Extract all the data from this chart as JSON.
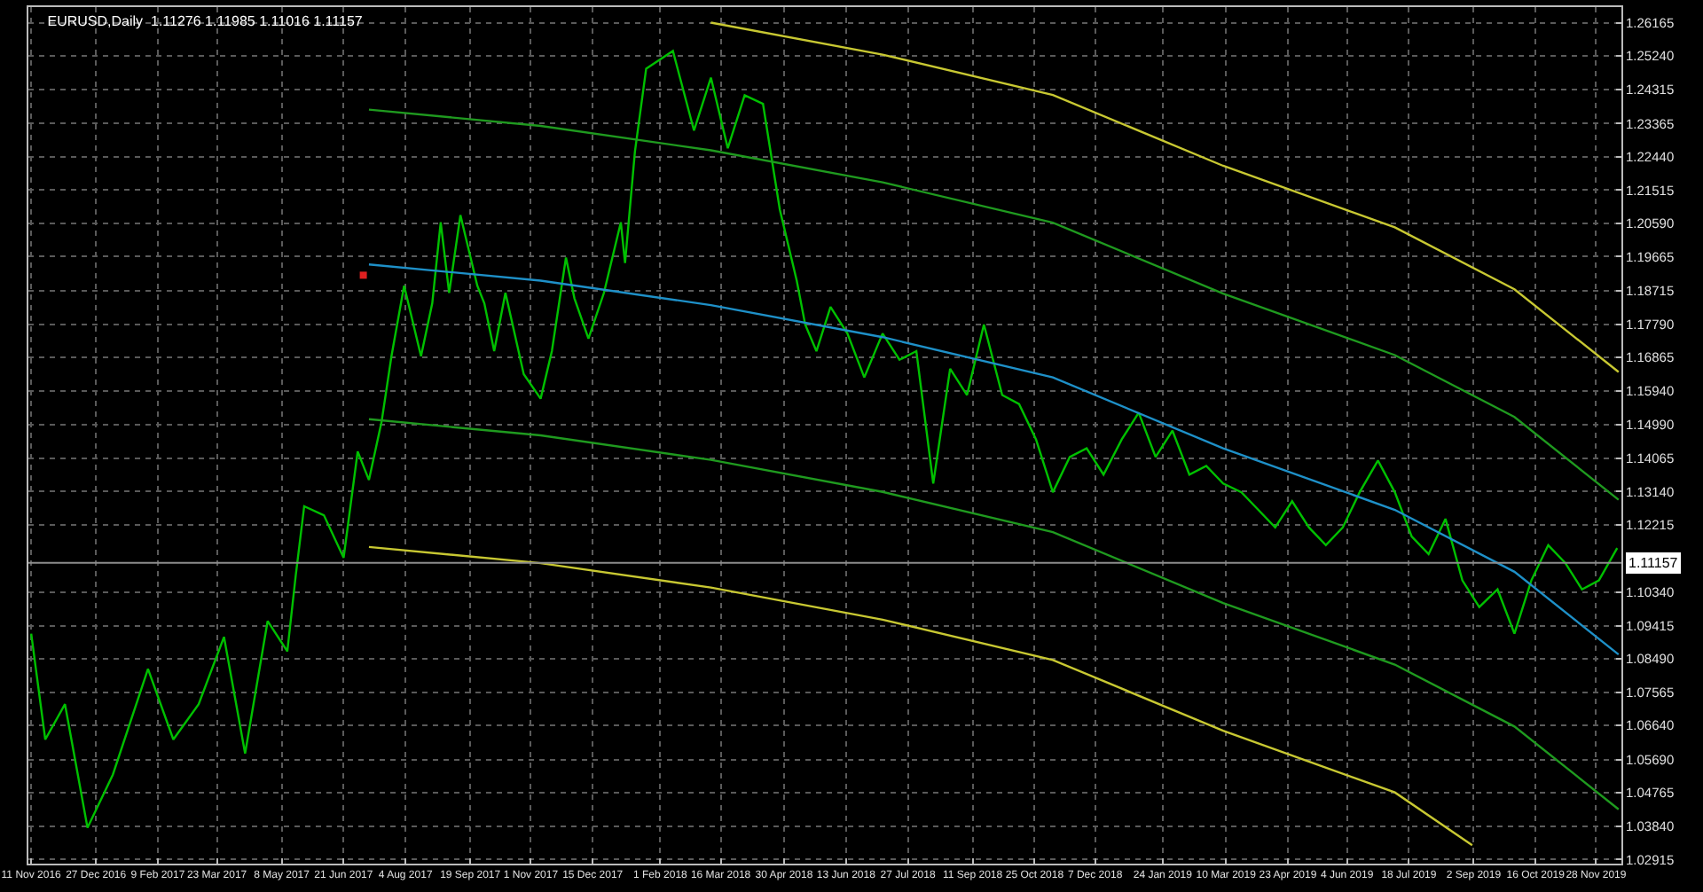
{
  "chart_data": {
    "type": "line",
    "title": "EURUSD,Daily  1.11276 1.11985 1.11016 1.11157",
    "xlim": [
      "2016-11-09",
      "2019-12-16"
    ],
    "ylim": [
      1.028,
      1.266
    ],
    "xticks": [
      {
        "value": "2016-11-11",
        "label": "11 Nov 2016"
      },
      {
        "value": "2016-12-27",
        "label": "27 Dec 2016"
      },
      {
        "value": "2017-02-09",
        "label": "9 Feb 2017"
      },
      {
        "value": "2017-03-23",
        "label": "23 Mar 2017"
      },
      {
        "value": "2017-05-08",
        "label": "8 May 2017"
      },
      {
        "value": "2017-06-21",
        "label": "21 Jun 2017"
      },
      {
        "value": "2017-08-04",
        "label": "4 Aug 2017"
      },
      {
        "value": "2017-09-19",
        "label": "19 Sep 2017"
      },
      {
        "value": "2017-11-01",
        "label": "1 Nov 2017"
      },
      {
        "value": "2017-12-15",
        "label": "15 Dec 2017"
      },
      {
        "value": "2018-02-01",
        "label": "1 Feb 2018"
      },
      {
        "value": "2018-03-16",
        "label": "16 Mar 2018"
      },
      {
        "value": "2018-04-30",
        "label": "30 Apr 2018"
      },
      {
        "value": "2018-06-13",
        "label": "13 Jun 2018"
      },
      {
        "value": "2018-07-27",
        "label": "27 Jul 2018"
      },
      {
        "value": "2018-09-11",
        "label": "11 Sep 2018"
      },
      {
        "value": "2018-10-25",
        "label": "25 Oct 2018"
      },
      {
        "value": "2018-12-07",
        "label": "7 Dec 2018"
      },
      {
        "value": "2019-01-24",
        "label": "24 Jan 2019"
      },
      {
        "value": "2019-03-10",
        "label": "10 Mar 2019"
      },
      {
        "value": "2019-04-23",
        "label": "23 Apr 2019"
      },
      {
        "value": "2019-06-04",
        "label": "4 Jun 2019"
      },
      {
        "value": "2019-07-18",
        "label": "18 Jul 2019"
      },
      {
        "value": "2019-09-02",
        "label": "2 Sep 2019"
      },
      {
        "value": "2019-10-16",
        "label": "16 Oct 2019"
      },
      {
        "value": "2019-11-28",
        "label": "28 Nov 2019"
      }
    ],
    "yticks": [
      {
        "value": 1.26165,
        "label": "1.26165"
      },
      {
        "value": 1.2524,
        "label": "1.25240"
      },
      {
        "value": 1.24315,
        "label": "1.24315"
      },
      {
        "value": 1.23365,
        "label": "1.23365"
      },
      {
        "value": 1.2244,
        "label": "1.22440"
      },
      {
        "value": 1.21515,
        "label": "1.21515"
      },
      {
        "value": 1.2059,
        "label": "1.20590"
      },
      {
        "value": 1.19665,
        "label": "1.19665"
      },
      {
        "value": 1.18715,
        "label": "1.18715"
      },
      {
        "value": 1.1779,
        "label": "1.17790"
      },
      {
        "value": 1.16865,
        "label": "1.16865"
      },
      {
        "value": 1.1594,
        "label": "1.15940"
      },
      {
        "value": 1.1499,
        "label": "1.14990"
      },
      {
        "value": 1.14065,
        "label": "1.14065"
      },
      {
        "value": 1.1314,
        "label": "1.13140"
      },
      {
        "value": 1.12215,
        "label": "1.12215"
      },
      {
        "value": 1.1034,
        "label": "1.10340"
      },
      {
        "value": 1.09415,
        "label": "1.09415"
      },
      {
        "value": 1.0849,
        "label": "1.08490"
      },
      {
        "value": 1.07565,
        "label": "1.07565"
      },
      {
        "value": 1.0664,
        "label": "1.06640"
      },
      {
        "value": 1.0569,
        "label": "1.05690"
      },
      {
        "value": 1.04765,
        "label": "1.04765"
      },
      {
        "value": 1.0384,
        "label": "1.03840"
      },
      {
        "value": 1.02915,
        "label": "1.02915"
      }
    ],
    "grid": true,
    "line_style": "dotted",
    "ref_lines": [
      {
        "axis": "y",
        "value": 1.11157,
        "label": "1.11157",
        "color": "#8c8c8c"
      }
    ],
    "series": [
      {
        "color": "#00c000",
        "line_style": "solid",
        "x": [
          "2016-11-11",
          "2016-11-21",
          "2016-12-05",
          "2016-12-21",
          "2017-01-08",
          "2017-02-02",
          "2017-02-20",
          "2017-03-10",
          "2017-03-28",
          "2017-04-12",
          "2017-04-28",
          "2017-05-12",
          "2017-05-18",
          "2017-05-24",
          "2017-06-07",
          "2017-06-21",
          "2017-07-01",
          "2017-07-09",
          "2017-07-18",
          "2017-07-25",
          "2017-08-03",
          "2017-08-15",
          "2017-08-23",
          "2017-08-29",
          "2017-09-04",
          "2017-09-12",
          "2017-09-24",
          "2017-09-29",
          "2017-10-06",
          "2017-10-14",
          "2017-10-27",
          "2017-11-08",
          "2017-11-16",
          "2017-11-26",
          "2017-12-02",
          "2017-12-12",
          "2017-12-23",
          "2018-01-04",
          "2018-01-07",
          "2018-01-14",
          "2018-01-22",
          "2018-02-10",
          "2018-02-25",
          "2018-03-09",
          "2018-03-21",
          "2018-04-02",
          "2018-04-15",
          "2018-04-22",
          "2018-04-27",
          "2018-05-09",
          "2018-05-15",
          "2018-05-23",
          "2018-06-02",
          "2018-06-14",
          "2018-06-26",
          "2018-07-09",
          "2018-07-21",
          "2018-08-02",
          "2018-08-14",
          "2018-08-26",
          "2018-09-07",
          "2018-09-19",
          "2018-10-02",
          "2018-10-14",
          "2018-10-26",
          "2018-11-07",
          "2018-11-19",
          "2018-12-01",
          "2018-12-13",
          "2018-12-26",
          "2019-01-07",
          "2019-01-19",
          "2019-01-31",
          "2019-02-12",
          "2019-02-24",
          "2019-03-08",
          "2019-03-21",
          "2019-04-02",
          "2019-04-14",
          "2019-04-26",
          "2019-05-08",
          "2019-05-20",
          "2019-06-01",
          "2019-06-13",
          "2019-06-26",
          "2019-07-08",
          "2019-07-20",
          "2019-08-01",
          "2019-08-13",
          "2019-08-25",
          "2019-09-06",
          "2019-09-19",
          "2019-10-01",
          "2019-10-13",
          "2019-10-25",
          "2019-11-06",
          "2019-11-18",
          "2019-11-30",
          "2019-12-13"
        ],
        "values": [
          1.0919,
          1.0625,
          1.0723,
          1.038,
          1.0527,
          1.0821,
          1.0625,
          1.0723,
          1.091,
          1.0586,
          1.0954,
          1.087,
          1.1081,
          1.1273,
          1.1248,
          1.113,
          1.1425,
          1.1346,
          1.1508,
          1.169,
          1.1886,
          1.169,
          1.1837,
          1.2062,
          1.1866,
          1.2082,
          1.1886,
          1.1837,
          1.1704,
          1.1866,
          1.164,
          1.1572,
          1.1704,
          1.1964,
          1.1851,
          1.1739,
          1.1866,
          1.2062,
          1.1949,
          1.2258,
          1.2489,
          1.2538,
          1.2317,
          1.2464,
          1.2268,
          1.2415,
          1.2391,
          1.2219,
          1.2097,
          1.19,
          1.1778,
          1.1704,
          1.1827,
          1.1753,
          1.1631,
          1.1753,
          1.168,
          1.1704,
          1.1336,
          1.1655,
          1.1582,
          1.1778,
          1.1582,
          1.1557,
          1.1459,
          1.1312,
          1.141,
          1.1434,
          1.1361,
          1.1459,
          1.1533,
          1.141,
          1.1483,
          1.1361,
          1.1385,
          1.1336,
          1.1312,
          1.1263,
          1.1214,
          1.1287,
          1.1214,
          1.1165,
          1.1214,
          1.1312,
          1.14,
          1.1312,
          1.1189,
          1.114,
          1.1238,
          1.1067,
          1.0993,
          1.1042,
          1.0919,
          1.1067,
          1.1165,
          1.1116,
          1.1042,
          1.1067,
          1.1157
        ]
      },
      {
        "color": "#1e90c8",
        "line_style": "solid",
        "x": [
          "2017-07-09",
          "2017-11-08",
          "2018-03-09",
          "2018-07-09",
          "2018-11-07",
          "2019-03-08",
          "2019-07-08",
          "2019-10-01",
          "2019-12-14"
        ],
        "values": [
          1.1945,
          1.19,
          1.1832,
          1.1743,
          1.1631,
          1.1434,
          1.1263,
          1.1091,
          1.0861
        ]
      },
      {
        "color": "#1f9a1f",
        "line_style": "solid",
        "x": [
          "2017-07-09",
          "2017-11-08",
          "2018-03-09",
          "2018-07-09",
          "2018-11-07",
          "2019-03-08",
          "2019-07-08",
          "2019-10-01",
          "2019-12-14"
        ],
        "values": [
          1.2375,
          1.233,
          1.2262,
          1.2173,
          1.2061,
          1.1864,
          1.1693,
          1.1521,
          1.1291
        ]
      },
      {
        "color": "#1f9a1f",
        "line_style": "solid",
        "x": [
          "2017-07-09",
          "2017-11-08",
          "2018-03-09",
          "2018-07-09",
          "2018-11-07",
          "2019-03-08",
          "2019-07-08",
          "2019-10-01",
          "2019-12-14"
        ],
        "values": [
          1.1515,
          1.147,
          1.1402,
          1.1313,
          1.1201,
          1.1004,
          1.0833,
          1.0661,
          1.0431
        ]
      },
      {
        "color": "#c8c832",
        "line_style": "solid",
        "x": [
          "2018-03-09",
          "2018-07-09",
          "2018-11-07",
          "2019-03-08",
          "2019-07-08",
          "2019-10-01",
          "2019-12-14"
        ],
        "values": [
          1.2617,
          1.2528,
          1.2416,
          1.2219,
          1.2048,
          1.1876,
          1.1646
        ]
      },
      {
        "color": "#c8c832",
        "line_style": "solid",
        "x": [
          "2017-07-09",
          "2017-11-08",
          "2018-03-09",
          "2018-07-09",
          "2018-11-07",
          "2019-03-08",
          "2019-07-08",
          "2019-09-01"
        ],
        "values": [
          1.116,
          1.1115,
          1.1047,
          1.0958,
          1.0846,
          1.0649,
          1.0478,
          1.0331
        ]
      },
      {
        "type": "scatter",
        "color": "#e02020",
        "marker": "square",
        "x": [
          "2017-07-05"
        ],
        "values": [
          1.1915
        ]
      }
    ]
  }
}
